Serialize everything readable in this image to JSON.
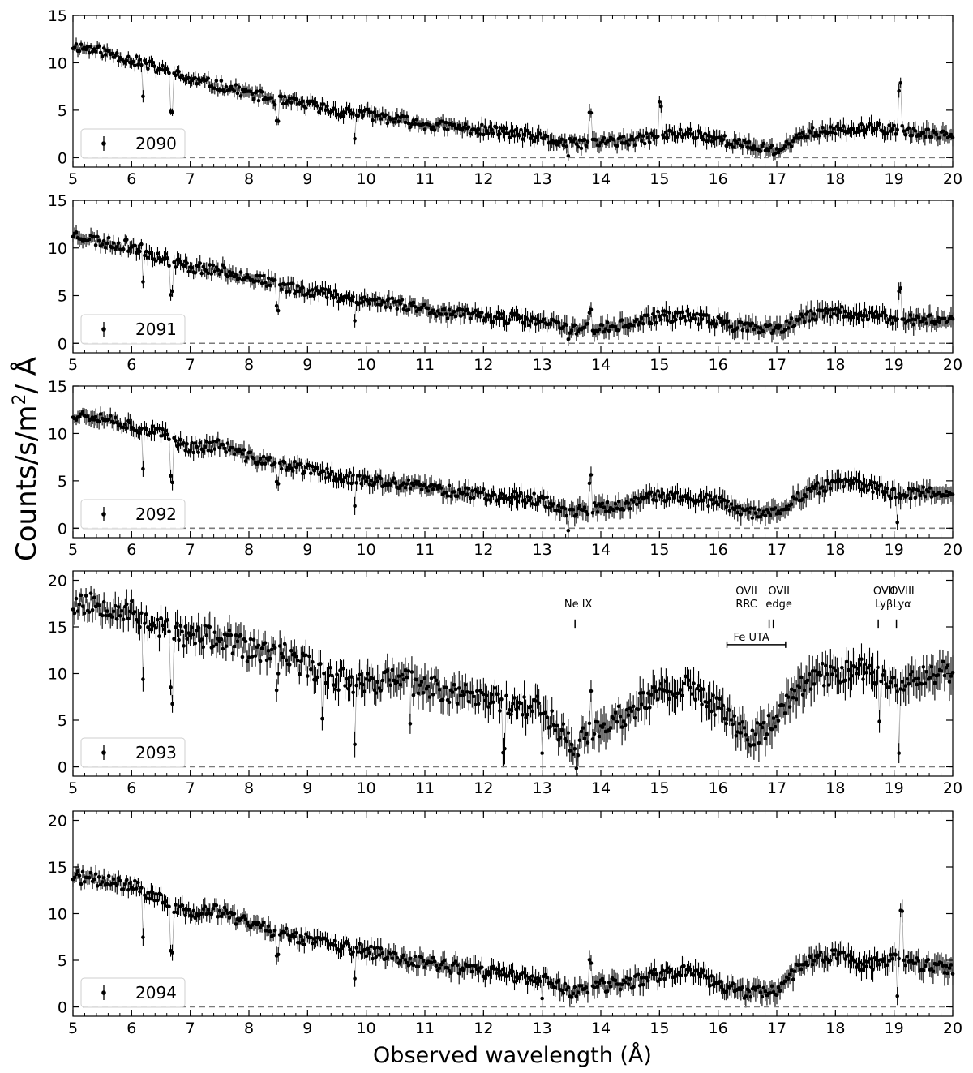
{
  "figure": {
    "ylabel_prefix": "Counts/s/m",
    "ylabel_sup": "2",
    "ylabel_suffix": "/ Å",
    "xlabel": "Observed wavelength (Å)"
  },
  "chart_data": [
    {
      "type": "scatter",
      "legend": "2090",
      "xlim": [
        5,
        20
      ],
      "ylim": [
        -1,
        15
      ],
      "yticks": [
        0,
        5,
        10,
        15
      ],
      "xticks": [
        5,
        6,
        7,
        8,
        9,
        10,
        11,
        12,
        13,
        14,
        15,
        16,
        17,
        18,
        19,
        20
      ],
      "reference_line": 0,
      "anchors": [
        [
          5.0,
          11.8
        ],
        [
          5.5,
          11.2
        ],
        [
          6.0,
          10.3
        ],
        [
          6.5,
          9.3
        ],
        [
          7.0,
          8.2
        ],
        [
          7.5,
          7.6
        ],
        [
          8.0,
          6.8
        ],
        [
          8.5,
          6.0
        ],
        [
          9.0,
          5.6
        ],
        [
          9.5,
          4.9
        ],
        [
          10.0,
          4.6
        ],
        [
          10.5,
          4.0
        ],
        [
          11.0,
          3.5
        ],
        [
          11.5,
          3.2
        ],
        [
          12.0,
          2.9
        ],
        [
          12.5,
          2.6
        ],
        [
          13.0,
          2.0
        ],
        [
          13.5,
          1.4
        ],
        [
          14.0,
          1.7
        ],
        [
          14.5,
          1.7
        ],
        [
          15.0,
          2.3
        ],
        [
          15.5,
          2.6
        ],
        [
          16.0,
          2.0
        ],
        [
          16.5,
          1.2
        ],
        [
          17.0,
          0.8
        ],
        [
          17.5,
          2.6
        ],
        [
          18.0,
          2.8
        ],
        [
          18.5,
          3.0
        ],
        [
          19.0,
          3.0
        ],
        [
          19.5,
          2.4
        ],
        [
          20.0,
          2.6
        ]
      ],
      "features": [
        {
          "x": 6.2,
          "depth": 3.5
        },
        {
          "x": 6.68,
          "depth": 3.6
        },
        {
          "x": 8.48,
          "depth": 2.5
        },
        {
          "x": 9.8,
          "depth": 2.5
        },
        {
          "x": 13.45,
          "depth": 1.5
        },
        {
          "x": 17.05,
          "depth": 0.7
        }
      ],
      "peaks": [
        {
          "x": 13.82,
          "height": 3.0
        },
        {
          "x": 15.02,
          "height": 3.2
        },
        {
          "x": 19.1,
          "height": 4.5
        }
      ],
      "scatter": 0.55,
      "error": 0.75,
      "seed": 11
    },
    {
      "type": "scatter",
      "legend": "2091",
      "xlim": [
        5,
        20
      ],
      "ylim": [
        -1,
        15
      ],
      "yticks": [
        0,
        5,
        10,
        15
      ],
      "xticks": [
        5,
        6,
        7,
        8,
        9,
        10,
        11,
        12,
        13,
        14,
        15,
        16,
        17,
        18,
        19,
        20
      ],
      "reference_line": 0,
      "anchors": [
        [
          5.0,
          11.5
        ],
        [
          5.5,
          10.6
        ],
        [
          6.0,
          10.2
        ],
        [
          6.5,
          9.0
        ],
        [
          7.0,
          8.0
        ],
        [
          7.5,
          7.7
        ],
        [
          8.0,
          7.0
        ],
        [
          8.5,
          6.0
        ],
        [
          9.0,
          5.6
        ],
        [
          9.5,
          5.0
        ],
        [
          10.0,
          4.5
        ],
        [
          10.5,
          4.2
        ],
        [
          11.0,
          3.7
        ],
        [
          11.5,
          3.0
        ],
        [
          12.0,
          2.9
        ],
        [
          12.5,
          2.6
        ],
        [
          13.0,
          2.2
        ],
        [
          13.5,
          1.6
        ],
        [
          14.0,
          1.5
        ],
        [
          14.5,
          2.0
        ],
        [
          15.0,
          2.8
        ],
        [
          15.5,
          2.8
        ],
        [
          16.0,
          2.2
        ],
        [
          16.5,
          1.6
        ],
        [
          17.0,
          1.3
        ],
        [
          17.5,
          2.8
        ],
        [
          18.0,
          3.3
        ],
        [
          18.5,
          3.0
        ],
        [
          19.0,
          2.5
        ],
        [
          19.5,
          2.5
        ],
        [
          20.0,
          2.6
        ]
      ],
      "features": [
        {
          "x": 6.2,
          "depth": 3.5
        },
        {
          "x": 6.68,
          "depth": 3.5
        },
        {
          "x": 8.48,
          "depth": 2.5
        },
        {
          "x": 9.8,
          "depth": 2.5
        },
        {
          "x": 13.45,
          "depth": 1.5
        }
      ],
      "peaks": [
        {
          "x": 13.82,
          "height": 2.2
        },
        {
          "x": 19.1,
          "height": 3.0
        }
      ],
      "scatter": 0.6,
      "error": 0.85,
      "seed": 23
    },
    {
      "type": "scatter",
      "legend": "2092",
      "xlim": [
        5,
        20
      ],
      "ylim": [
        -1,
        15
      ],
      "yticks": [
        0,
        5,
        10,
        15
      ],
      "xticks": [
        5,
        6,
        7,
        8,
        9,
        10,
        11,
        12,
        13,
        14,
        15,
        16,
        17,
        18,
        19,
        20
      ],
      "reference_line": 0,
      "anchors": [
        [
          5.0,
          12.0
        ],
        [
          5.5,
          11.8
        ],
        [
          6.0,
          10.8
        ],
        [
          6.5,
          10.0
        ],
        [
          7.0,
          8.5
        ],
        [
          7.5,
          8.8
        ],
        [
          8.0,
          7.5
        ],
        [
          8.5,
          6.8
        ],
        [
          9.0,
          6.2
        ],
        [
          9.5,
          5.5
        ],
        [
          10.0,
          5.0
        ],
        [
          10.5,
          4.7
        ],
        [
          11.0,
          4.3
        ],
        [
          11.5,
          3.9
        ],
        [
          12.0,
          3.6
        ],
        [
          12.5,
          3.3
        ],
        [
          13.0,
          3.0
        ],
        [
          13.5,
          1.6
        ],
        [
          14.0,
          2.2
        ],
        [
          14.5,
          2.5
        ],
        [
          15.0,
          3.5
        ],
        [
          15.5,
          3.2
        ],
        [
          16.0,
          2.8
        ],
        [
          16.5,
          1.5
        ],
        [
          17.0,
          1.8
        ],
        [
          17.5,
          3.8
        ],
        [
          18.0,
          4.8
        ],
        [
          18.5,
          4.6
        ],
        [
          19.0,
          3.6
        ],
        [
          19.5,
          3.8
        ],
        [
          20.0,
          3.8
        ]
      ],
      "features": [
        {
          "x": 6.2,
          "depth": 4.0
        },
        {
          "x": 6.68,
          "depth": 4.2
        },
        {
          "x": 8.48,
          "depth": 2.5
        },
        {
          "x": 9.8,
          "depth": 2.5
        },
        {
          "x": 13.45,
          "depth": 1.5
        },
        {
          "x": 19.05,
          "depth": 2.5
        }
      ],
      "peaks": [
        {
          "x": 13.82,
          "height": 3.2
        }
      ],
      "scatter": 0.6,
      "error": 0.9,
      "seed": 37
    },
    {
      "type": "scatter",
      "legend": "2093",
      "xlim": [
        5,
        20
      ],
      "ylim": [
        -1,
        21
      ],
      "yticks": [
        0,
        5,
        10,
        15,
        20
      ],
      "xticks": [
        5,
        6,
        7,
        8,
        9,
        10,
        11,
        12,
        13,
        14,
        15,
        16,
        17,
        18,
        19,
        20
      ],
      "reference_line": 0,
      "anchors": [
        [
          5.0,
          17.5
        ],
        [
          5.5,
          17.5
        ],
        [
          6.0,
          16.5
        ],
        [
          6.5,
          15.0
        ],
        [
          7.0,
          14.0
        ],
        [
          7.5,
          13.8
        ],
        [
          8.0,
          12.5
        ],
        [
          8.5,
          12.2
        ],
        [
          9.0,
          10.8
        ],
        [
          9.5,
          9.5
        ],
        [
          10.0,
          9.0
        ],
        [
          10.5,
          9.5
        ],
        [
          11.0,
          8.5
        ],
        [
          11.5,
          8.0
        ],
        [
          12.0,
          7.5
        ],
        [
          12.5,
          6.8
        ],
        [
          13.0,
          6.2
        ],
        [
          13.5,
          2.5
        ],
        [
          14.0,
          4.0
        ],
        [
          14.5,
          6.0
        ],
        [
          15.0,
          8.0
        ],
        [
          15.5,
          8.5
        ],
        [
          16.0,
          6.5
        ],
        [
          16.5,
          3.0
        ],
        [
          17.0,
          5.0
        ],
        [
          17.5,
          9.5
        ],
        [
          18.0,
          10.0
        ],
        [
          18.5,
          10.5
        ],
        [
          19.0,
          9.0
        ],
        [
          19.5,
          10.0
        ],
        [
          20.0,
          10.0
        ]
      ],
      "features": [
        {
          "x": 6.2,
          "depth": 6.5
        },
        {
          "x": 6.68,
          "depth": 7.0
        },
        {
          "x": 8.48,
          "depth": 3.5
        },
        {
          "x": 9.25,
          "depth": 4.5
        },
        {
          "x": 9.8,
          "depth": 5.5
        },
        {
          "x": 10.75,
          "depth": 4.5
        },
        {
          "x": 12.35,
          "depth": 4.5
        },
        {
          "x": 13.0,
          "depth": 4.0
        },
        {
          "x": 13.6,
          "depth": 2.5
        },
        {
          "x": 18.75,
          "depth": 4.5
        },
        {
          "x": 19.08,
          "depth": 7.0
        }
      ],
      "peaks": [
        {
          "x": 13.83,
          "height": 5.5
        }
      ],
      "scatter": 1.3,
      "error": 1.6,
      "seed": 53,
      "annotations": [
        {
          "x": 13.56,
          "label1": "Ne IX",
          "label2": ""
        },
        {
          "x": 16.87,
          "label1": "OVII",
          "label2": "RRC"
        },
        {
          "x": 16.94,
          "label1": "OVII",
          "label2": "edge"
        },
        {
          "x": 18.73,
          "label1": "OVII",
          "label2": "Lyβ"
        },
        {
          "x": 19.04,
          "label1": "OVIII",
          "label2": "Lyα"
        }
      ],
      "bracket": {
        "x0": 16.15,
        "x1": 17.15,
        "label": "Fe UTA"
      }
    },
    {
      "type": "scatter",
      "legend": "2094",
      "xlim": [
        5,
        20
      ],
      "ylim": [
        -1,
        21
      ],
      "yticks": [
        0,
        5,
        10,
        15,
        20
      ],
      "xticks": [
        5,
        6,
        7,
        8,
        9,
        10,
        11,
        12,
        13,
        14,
        15,
        16,
        17,
        18,
        19,
        20
      ],
      "reference_line": 0,
      "anchors": [
        [
          5.0,
          14.0
        ],
        [
          5.5,
          13.5
        ],
        [
          6.0,
          13.0
        ],
        [
          6.5,
          11.5
        ],
        [
          7.0,
          10.0
        ],
        [
          7.5,
          10.3
        ],
        [
          8.0,
          9.0
        ],
        [
          8.5,
          8.0
        ],
        [
          9.0,
          7.3
        ],
        [
          9.5,
          6.5
        ],
        [
          10.0,
          6.0
        ],
        [
          10.5,
          5.2
        ],
        [
          11.0,
          4.8
        ],
        [
          11.5,
          4.2
        ],
        [
          12.0,
          3.8
        ],
        [
          12.5,
          3.3
        ],
        [
          13.0,
          3.0
        ],
        [
          13.5,
          1.5
        ],
        [
          14.0,
          2.3
        ],
        [
          14.5,
          2.5
        ],
        [
          15.0,
          3.5
        ],
        [
          15.5,
          4.0
        ],
        [
          16.0,
          2.5
        ],
        [
          16.5,
          1.5
        ],
        [
          17.0,
          1.8
        ],
        [
          17.5,
          5.0
        ],
        [
          18.0,
          5.5
        ],
        [
          18.5,
          4.5
        ],
        [
          19.0,
          5.0
        ],
        [
          19.5,
          4.5
        ],
        [
          20.0,
          4.0
        ]
      ],
      "features": [
        {
          "x": 6.2,
          "depth": 4.5
        },
        {
          "x": 6.68,
          "depth": 5.5
        },
        {
          "x": 8.48,
          "depth": 3.0
        },
        {
          "x": 9.8,
          "depth": 2.5
        },
        {
          "x": 13.0,
          "depth": 2.5
        },
        {
          "x": 19.05,
          "depth": 4.0
        }
      ],
      "peaks": [
        {
          "x": 13.82,
          "height": 3.0
        },
        {
          "x": 19.12,
          "height": 5.0
        }
      ],
      "scatter": 0.7,
      "error": 1.0,
      "seed": 71
    }
  ]
}
